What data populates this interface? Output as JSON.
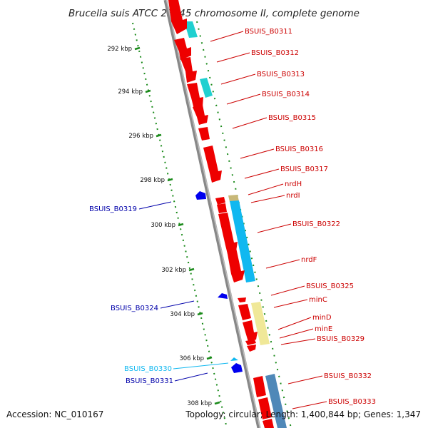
{
  "title": "Brucella suis ATCC 23445 chromosome II, complete genome",
  "footer": {
    "accession": "Accession: NC_010167",
    "summary": "Topology: circular; Length: 1,400,844 bp; Genes: 1,347"
  },
  "colors": {
    "forward_gene": "#ee0000",
    "reverse_gene": "#0000ee",
    "cds_highlight": "#20d0d0",
    "feature_blue": "#10b8f0",
    "feature_khaki": "#c8b878",
    "feature_pale_yellow": "#f0e898",
    "feature_steel": "#4f88b8",
    "backbone": "#888888",
    "ticks": "#1a8a1a"
  },
  "chart_data": {
    "type": "genome-map",
    "position_unit": "kbp",
    "tick_labels": [
      "292 kbp",
      "294 kbp",
      "296 kbp",
      "298 kbp",
      "300 kbp",
      "302 kbp",
      "304 kbp",
      "306 kbp",
      "308 kbp"
    ],
    "genes": [
      {
        "label": "BSUIS_B0311",
        "strand": "+"
      },
      {
        "label": "BSUIS_B0312",
        "strand": "+"
      },
      {
        "label": "BSUIS_B0313",
        "strand": "+"
      },
      {
        "label": "BSUIS_B0314",
        "strand": "+"
      },
      {
        "label": "BSUIS_B0315",
        "strand": "+"
      },
      {
        "label": "BSUIS_B0316",
        "strand": "+"
      },
      {
        "label": "BSUIS_B0317",
        "strand": "+"
      },
      {
        "label": "nrdH",
        "strand": "+"
      },
      {
        "label": "nrdI",
        "strand": "+"
      },
      {
        "label": "BSUIS_B0319",
        "strand": "-"
      },
      {
        "label": "BSUIS_B0322",
        "strand": "+"
      },
      {
        "label": "nrdF",
        "strand": "+"
      },
      {
        "label": "BSUIS_B0324",
        "strand": "-"
      },
      {
        "label": "BSUIS_B0325",
        "strand": "+"
      },
      {
        "label": "minC",
        "strand": "+"
      },
      {
        "label": "minD",
        "strand": "+"
      },
      {
        "label": "minE",
        "strand": "+"
      },
      {
        "label": "BSUIS_B0329",
        "strand": "+"
      },
      {
        "label": "BSUIS_B0330",
        "strand": "-"
      },
      {
        "label": "BSUIS_B0331",
        "strand": "-"
      },
      {
        "label": "BSUIS_B0332",
        "strand": "+"
      },
      {
        "label": "BSUIS_B0333",
        "strand": "+"
      }
    ]
  }
}
